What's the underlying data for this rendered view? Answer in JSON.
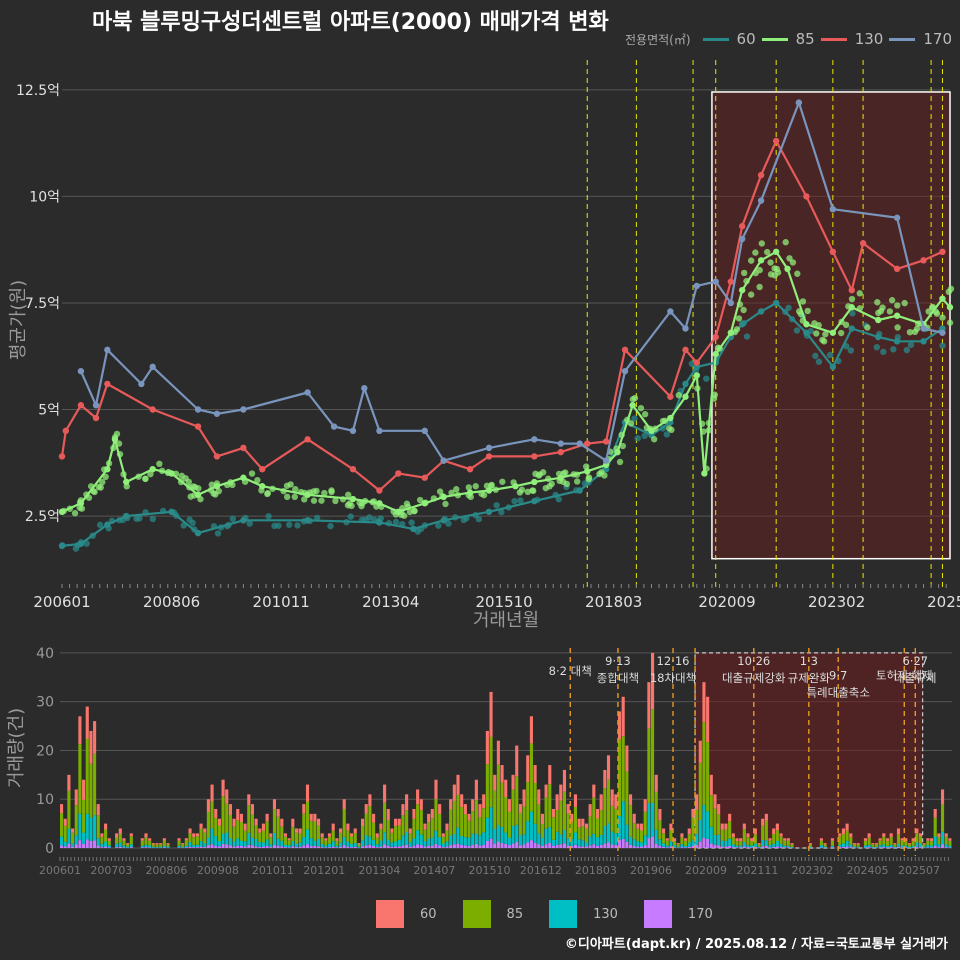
{
  "title": "마북 블루밍구성더센트럴 아파트(2000) 매매가격 변화",
  "legend_title": "전용면적(㎡)",
  "footer": "©디아파트(dapt.kr) / 2025.08.12 / 자료=국토교통부 실거래가",
  "colors": {
    "background": "#2b2b2b",
    "grid": "#555555",
    "s60": "#2a8a8a",
    "s85": "#90ee7a",
    "s130": "#e85a5a",
    "s170": "#7a95bd",
    "b60": "#f8766d",
    "b85": "#7cae00",
    "b130": "#00bfc4",
    "b170": "#c77cff",
    "policy": "#e8e800",
    "policy_bottom": "#e89a20"
  },
  "chart_data": [
    {
      "type": "line",
      "ylabel": "평균가(원)",
      "xlabel": "거래년월",
      "x_range": [
        "2006-01",
        "2025-08"
      ],
      "ylim": [
        1.0,
        13.2
      ],
      "y_ticks": [
        2.5,
        5,
        7.5,
        10,
        12.5
      ],
      "y_tick_labels": [
        "2.5억",
        "5억",
        "7.5억",
        "10억",
        "12.5억"
      ],
      "x_ticks": [
        "2006-01",
        "2008-06",
        "2010-11",
        "2013-04",
        "2015-10",
        "2018-03",
        "2020-09",
        "2023-02",
        "2025-07"
      ],
      "x_tick_labels": [
        "200601",
        "200806",
        "201011",
        "201304",
        "201510",
        "201803",
        "202009",
        "202302",
        "2025"
      ],
      "highlight_box": {
        "x": [
          "2020-05",
          "2025-08"
        ],
        "y": [
          1.5,
          12.45
        ]
      },
      "policy_lines": [
        "2017-08",
        "2018-09",
        "2019-12",
        "2020-06",
        "2021-10",
        "2023-01",
        "2023-09",
        "2025-03",
        "2025-06"
      ],
      "series": [
        {
          "name": "60",
          "points": [
            [
              "2006-01",
              1.8
            ],
            [
              "2006-06",
              1.85
            ],
            [
              "2007-01",
              2.3
            ],
            [
              "2007-06",
              2.5
            ],
            [
              "2008-06",
              2.6
            ],
            [
              "2009-01",
              2.1
            ],
            [
              "2010-01",
              2.4
            ],
            [
              "2011-06",
              2.4
            ],
            [
              "2013-01",
              2.35
            ],
            [
              "2013-10",
              2.2
            ],
            [
              "2014-06",
              2.4
            ],
            [
              "2015-06",
              2.6
            ],
            [
              "2016-06",
              2.85
            ],
            [
              "2017-06",
              3.1
            ],
            [
              "2018-01",
              3.6
            ],
            [
              "2018-06",
              4.7
            ],
            [
              "2019-01",
              4.4
            ],
            [
              "2019-06",
              4.7
            ],
            [
              "2019-10",
              5.6
            ],
            [
              "2020-01",
              6.0
            ],
            [
              "2020-06",
              6.1
            ],
            [
              "2020-10",
              6.7
            ],
            [
              "2021-01",
              7.0
            ],
            [
              "2021-06",
              7.3
            ],
            [
              "2021-10",
              7.5
            ],
            [
              "2022-06",
              6.8
            ],
            [
              "2023-01",
              6.0
            ],
            [
              "2023-06",
              6.9
            ],
            [
              "2024-01",
              6.7
            ],
            [
              "2024-06",
              6.6
            ],
            [
              "2025-01",
              6.6
            ],
            [
              "2025-06",
              6.9
            ]
          ]
        },
        {
          "name": "85",
          "points": [
            [
              "2006-01",
              2.6
            ],
            [
              "2006-06",
              2.8
            ],
            [
              "2007-01",
              3.6
            ],
            [
              "2007-03",
              4.3
            ],
            [
              "2007-06",
              3.3
            ],
            [
              "2008-01",
              3.6
            ],
            [
              "2008-06",
              3.5
            ],
            [
              "2009-01",
              3.0
            ],
            [
              "2009-06",
              3.2
            ],
            [
              "2010-01",
              3.4
            ],
            [
              "2010-06",
              3.2
            ],
            [
              "2011-06",
              3.0
            ],
            [
              "2012-06",
              2.9
            ],
            [
              "2013-01",
              2.8
            ],
            [
              "2013-06",
              2.6
            ],
            [
              "2014-01",
              2.8
            ],
            [
              "2014-06",
              2.95
            ],
            [
              "2015-01",
              3.05
            ],
            [
              "2015-06",
              3.1
            ],
            [
              "2016-01",
              3.2
            ],
            [
              "2016-06",
              3.3
            ],
            [
              "2017-01",
              3.4
            ],
            [
              "2017-08",
              3.55
            ],
            [
              "2018-01",
              3.7
            ],
            [
              "2018-04",
              4.0
            ],
            [
              "2018-08",
              5.1
            ],
            [
              "2019-01",
              4.5
            ],
            [
              "2019-06",
              4.8
            ],
            [
              "2019-10",
              5.3
            ],
            [
              "2020-01",
              5.8
            ],
            [
              "2020-03",
              3.5
            ],
            [
              "2020-06",
              6.3
            ],
            [
              "2020-10",
              6.8
            ],
            [
              "2021-01",
              7.8
            ],
            [
              "2021-06",
              8.5
            ],
            [
              "2021-10",
              8.7
            ],
            [
              "2022-01",
              8.3
            ],
            [
              "2022-06",
              7.0
            ],
            [
              "2023-01",
              6.8
            ],
            [
              "2023-06",
              7.4
            ],
            [
              "2024-01",
              7.1
            ],
            [
              "2024-06",
              7.2
            ],
            [
              "2025-01",
              7.0
            ],
            [
              "2025-06",
              7.6
            ],
            [
              "2025-08",
              7.4
            ]
          ]
        },
        {
          "name": "130",
          "points": [
            [
              "2006-01",
              3.9
            ],
            [
              "2006-02",
              4.5
            ],
            [
              "2006-06",
              5.1
            ],
            [
              "2006-10",
              4.8
            ],
            [
              "2007-01",
              5.6
            ],
            [
              "2008-01",
              5.0
            ],
            [
              "2009-01",
              4.6
            ],
            [
              "2009-06",
              3.9
            ],
            [
              "2010-01",
              4.1
            ],
            [
              "2010-06",
              3.6
            ],
            [
              "2011-06",
              4.3
            ],
            [
              "2012-06",
              3.6
            ],
            [
              "2013-01",
              3.1
            ],
            [
              "2013-06",
              3.5
            ],
            [
              "2014-01",
              3.4
            ],
            [
              "2014-06",
              3.8
            ],
            [
              "2015-01",
              3.6
            ],
            [
              "2015-06",
              3.9
            ],
            [
              "2016-06",
              3.9
            ],
            [
              "2017-01",
              4.0
            ],
            [
              "2017-08",
              4.2
            ],
            [
              "2018-01",
              4.25
            ],
            [
              "2018-06",
              6.4
            ],
            [
              "2019-06",
              5.3
            ],
            [
              "2019-10",
              6.4
            ],
            [
              "2020-01",
              6.1
            ],
            [
              "2020-06",
              6.7
            ],
            [
              "2020-10",
              8.0
            ],
            [
              "2021-01",
              9.3
            ],
            [
              "2021-06",
              10.5
            ],
            [
              "2021-10",
              11.3
            ],
            [
              "2022-06",
              10.0
            ],
            [
              "2023-01",
              8.7
            ],
            [
              "2023-06",
              7.8
            ],
            [
              "2023-09",
              8.9
            ],
            [
              "2024-06",
              8.3
            ],
            [
              "2025-01",
              8.5
            ],
            [
              "2025-06",
              8.7
            ]
          ]
        },
        {
          "name": "170",
          "points": [
            [
              "2006-06",
              5.9
            ],
            [
              "2006-10",
              5.1
            ],
            [
              "2007-01",
              6.4
            ],
            [
              "2007-10",
              5.6
            ],
            [
              "2008-01",
              6.0
            ],
            [
              "2009-01",
              5.0
            ],
            [
              "2009-06",
              4.9
            ],
            [
              "2010-01",
              5.0
            ],
            [
              "2011-06",
              5.4
            ],
            [
              "2012-01",
              4.6
            ],
            [
              "2012-06",
              4.5
            ],
            [
              "2012-09",
              5.5
            ],
            [
              "2013-01",
              4.5
            ],
            [
              "2014-01",
              4.5
            ],
            [
              "2014-06",
              3.8
            ],
            [
              "2015-06",
              4.1
            ],
            [
              "2016-06",
              4.3
            ],
            [
              "2017-01",
              4.2
            ],
            [
              "2017-06",
              4.2
            ],
            [
              "2018-01",
              3.8
            ],
            [
              "2018-06",
              5.9
            ],
            [
              "2019-06",
              7.3
            ],
            [
              "2019-10",
              6.9
            ],
            [
              "2020-01",
              7.9
            ],
            [
              "2020-06",
              8.0
            ],
            [
              "2020-10",
              7.5
            ],
            [
              "2021-01",
              9.0
            ],
            [
              "2021-06",
              9.9
            ],
            [
              "2022-04",
              12.2
            ],
            [
              "2023-01",
              9.7
            ],
            [
              "2024-06",
              9.5
            ],
            [
              "2025-01",
              6.9
            ],
            [
              "2025-06",
              6.8
            ]
          ]
        }
      ]
    },
    {
      "type": "bar",
      "stacked": true,
      "ylabel": "거래량(건)",
      "ylim": [
        0,
        41
      ],
      "y_ticks": [
        0,
        10,
        20,
        30,
        40
      ],
      "x_tick_labels": [
        "200601",
        "200703",
        "200806",
        "200908",
        "201011",
        "201201",
        "201304",
        "201407",
        "201510",
        "201612",
        "201803",
        "201906",
        "202009",
        "202111",
        "202302",
        "202405",
        "202507"
      ],
      "highlight_box": {
        "x": [
          "2020-06",
          "2025-08"
        ],
        "y": [
          0,
          40
        ]
      },
      "policy_lines": [
        "2017-08",
        "2018-09",
        "2019-12",
        "2020-06",
        "2021-10",
        "2023-01",
        "2023-09",
        "2025-03",
        "2025-06"
      ],
      "annotations": [
        {
          "x": "2017-08",
          "y": 35.5,
          "lines": [
            "8·2 대책"
          ]
        },
        {
          "x": "2018-09",
          "y": 37.5,
          "lines": [
            "9·13",
            "종합대책"
          ]
        },
        {
          "x": "2019-12",
          "y": 37.5,
          "lines": [
            "12·16",
            "18차대책"
          ]
        },
        {
          "x": "2021-10",
          "y": 37.5,
          "lines": [
            "10·26",
            "대출규제강화"
          ]
        },
        {
          "x": "2023-01",
          "y": 37.5,
          "lines": [
            "1·3",
            "규제완화"
          ]
        },
        {
          "x": "2023-09",
          "y": 34.5,
          "lines": [
            "9·7",
            "특례대출축소"
          ]
        },
        {
          "x": "2025-03",
          "y": 34.5,
          "lines": [
            "토허제 해제"
          ]
        },
        {
          "x": "2025-06",
          "y": 37.5,
          "lines": [
            "6·27",
            "대출규제"
          ]
        }
      ],
      "monthly_totals": [
        9,
        6,
        15,
        4,
        12,
        27,
        14,
        29,
        24,
        26,
        9,
        3,
        5,
        2,
        0,
        3,
        4,
        2,
        1,
        3,
        0,
        0,
        2,
        3,
        2,
        1,
        1,
        1,
        2,
        1,
        0,
        0,
        2,
        1,
        2,
        4,
        3,
        3,
        5,
        4,
        10,
        13,
        8,
        6,
        14,
        12,
        9,
        6,
        8,
        7,
        5,
        11,
        9,
        6,
        4,
        5,
        7,
        3,
        10,
        8,
        6,
        3,
        2,
        6,
        4,
        4,
        9,
        13,
        7,
        7,
        6,
        3,
        2,
        3,
        5,
        2,
        4,
        10,
        5,
        3,
        4,
        1,
        6,
        9,
        11,
        7,
        3,
        5,
        13,
        8,
        4,
        6,
        6,
        9,
        11,
        4,
        8,
        12,
        10,
        5,
        7,
        8,
        14,
        9,
        3,
        5,
        10,
        13,
        15,
        11,
        9,
        7,
        10,
        14,
        9,
        11,
        24,
        32,
        15,
        22,
        17,
        14,
        10,
        15,
        21,
        9,
        12,
        19,
        27,
        17,
        12,
        7,
        13,
        17,
        8,
        11,
        13,
        16,
        9,
        7,
        11,
        6,
        6,
        5,
        9,
        13,
        8,
        11,
        16,
        19,
        12,
        11,
        28,
        31,
        21,
        11,
        7,
        5,
        5,
        10,
        34,
        40,
        15,
        8,
        4,
        2,
        5,
        2,
        1,
        3,
        2,
        4,
        8,
        11,
        22,
        34,
        31,
        15,
        11,
        9,
        5,
        5,
        7,
        3,
        2,
        2,
        5,
        3,
        2,
        4,
        1,
        6,
        7,
        2,
        4,
        5,
        3,
        2,
        2,
        1,
        0,
        0,
        0,
        0,
        1,
        0,
        0,
        2,
        1,
        0,
        2,
        0,
        3,
        4,
        5,
        3,
        1,
        1,
        0,
        2,
        3,
        1,
        1,
        2,
        3,
        2,
        3,
        1,
        4,
        2,
        2,
        1,
        2,
        4,
        3,
        1,
        2,
        2,
        8,
        3,
        12,
        3,
        2
      ]
    }
  ],
  "legend_items": [
    {
      "label": "60"
    },
    {
      "label": "85"
    },
    {
      "label": "130"
    },
    {
      "label": "170"
    }
  ]
}
